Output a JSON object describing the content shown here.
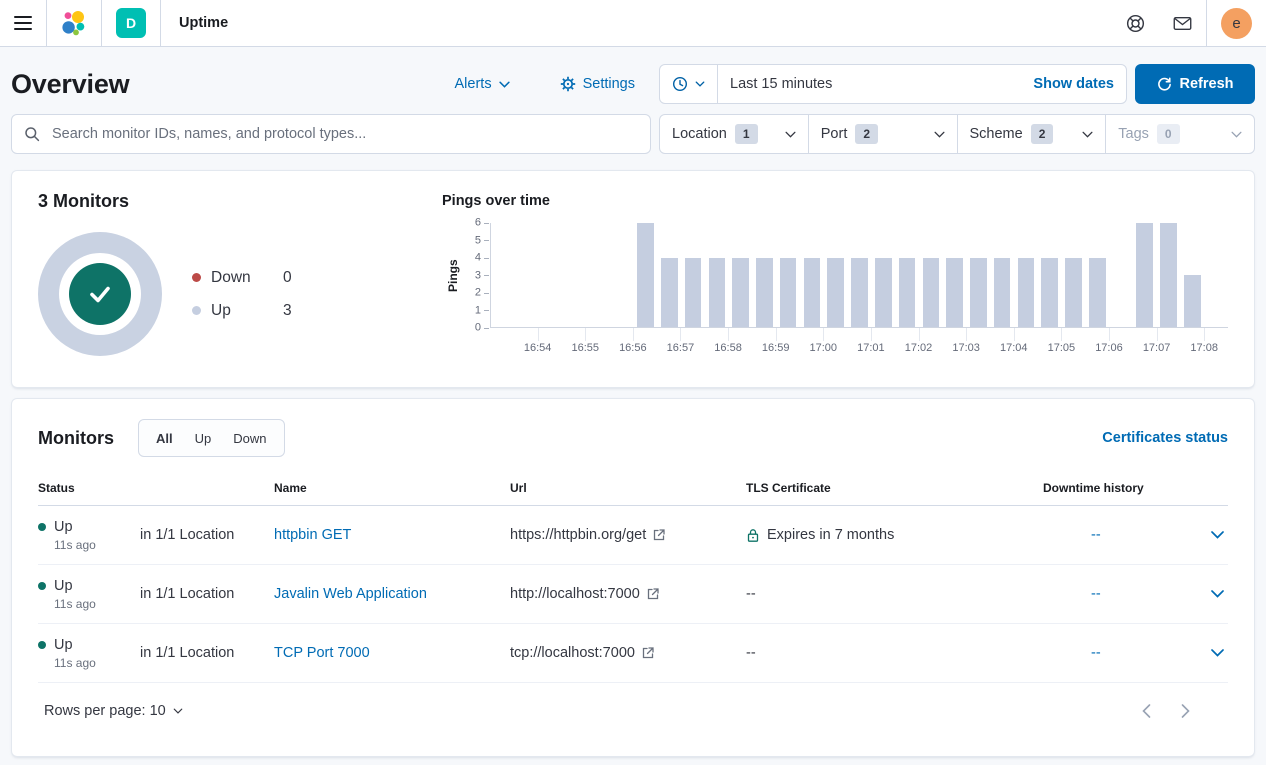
{
  "header": {
    "breadcrumb": "Uptime",
    "space_badge": "D",
    "avatar_initial": "e"
  },
  "page": {
    "title": "Overview",
    "alerts_label": "Alerts",
    "settings_label": "Settings",
    "time_range": "Last 15 minutes",
    "show_dates_label": "Show dates",
    "refresh_label": "Refresh"
  },
  "filters": {
    "search_placeholder": "Search monitor IDs, names, and protocol types...",
    "items": [
      {
        "label": "Location",
        "count": "1",
        "disabled": false
      },
      {
        "label": "Port",
        "count": "2",
        "disabled": false
      },
      {
        "label": "Scheme",
        "count": "2",
        "disabled": false
      },
      {
        "label": "Tags",
        "count": "0",
        "disabled": true
      }
    ]
  },
  "snapshot": {
    "title": "3 Monitors",
    "legend": [
      {
        "label": "Down",
        "value": "0",
        "color": "#BC4A47"
      },
      {
        "label": "Up",
        "value": "3",
        "color": "#C5CEE0"
      }
    ]
  },
  "chart_data": {
    "type": "bar",
    "title": "Pings over time",
    "ylabel": "Pings",
    "ylim": [
      0,
      6
    ],
    "yticks": [
      0,
      1,
      2,
      3,
      4,
      5,
      6
    ],
    "x_domain": [
      "16:53:00",
      "17:08:30"
    ],
    "xticks": [
      "16:54",
      "16:55",
      "16:56",
      "16:57",
      "16:58",
      "16:59",
      "17:00",
      "17:01",
      "17:02",
      "17:03",
      "17:04",
      "17:05",
      "17:06",
      "17:07",
      "17:08"
    ],
    "bucket_seconds": 30,
    "bar_color": "#C5CEE0",
    "grid": false,
    "points": [
      {
        "time": "16:56:00",
        "value": 6
      },
      {
        "time": "16:56:30",
        "value": 4
      },
      {
        "time": "16:57:00",
        "value": 4
      },
      {
        "time": "16:57:30",
        "value": 4
      },
      {
        "time": "16:58:00",
        "value": 4
      },
      {
        "time": "16:58:30",
        "value": 4
      },
      {
        "time": "16:59:00",
        "value": 4
      },
      {
        "time": "16:59:30",
        "value": 4
      },
      {
        "time": "17:00:00",
        "value": 4
      },
      {
        "time": "17:00:30",
        "value": 4
      },
      {
        "time": "17:01:00",
        "value": 4
      },
      {
        "time": "17:01:30",
        "value": 4
      },
      {
        "time": "17:02:00",
        "value": 4
      },
      {
        "time": "17:02:30",
        "value": 4
      },
      {
        "time": "17:03:00",
        "value": 4
      },
      {
        "time": "17:03:30",
        "value": 4
      },
      {
        "time": "17:04:00",
        "value": 4
      },
      {
        "time": "17:04:30",
        "value": 4
      },
      {
        "time": "17:05:00",
        "value": 4
      },
      {
        "time": "17:05:30",
        "value": 4
      },
      {
        "time": "17:06:30",
        "value": 6
      },
      {
        "time": "17:07:00",
        "value": 6
      },
      {
        "time": "17:07:30",
        "value": 3
      }
    ]
  },
  "monitors": {
    "title": "Monitors",
    "tabs": [
      "All",
      "Up",
      "Down"
    ],
    "selected_tab": "All",
    "certificates_link": "Certificates status",
    "columns": [
      "Status",
      "Name",
      "Url",
      "TLS Certificate",
      "Downtime history"
    ],
    "rows": [
      {
        "status": "Up",
        "ago": "11s ago",
        "location": "in 1/1 Location",
        "name": "httpbin GET",
        "url": "https://httpbin.org/get",
        "tls": "Expires in 7 months",
        "tls_has_lock": true,
        "downtime": "--"
      },
      {
        "status": "Up",
        "ago": "11s ago",
        "location": "in 1/1 Location",
        "name": "Javalin Web Application",
        "url": "http://localhost:7000",
        "tls": "--",
        "tls_has_lock": false,
        "downtime": "--"
      },
      {
        "status": "Up",
        "ago": "11s ago",
        "location": "in 1/1 Location",
        "name": "TCP Port 7000",
        "url": "tcp://localhost:7000",
        "tls": "--",
        "tls_has_lock": false,
        "downtime": "--"
      }
    ],
    "rows_per_page_label": "Rows per page: 10"
  },
  "colors": {
    "primary_blue": "#006BB4",
    "status_up_teal": "#0E7367",
    "status_down_red": "#BC4A47",
    "bar_fill": "#C5CEE0",
    "space_badge_teal": "#00BFB3",
    "avatar_orange": "#F4A061"
  },
  "icons": {
    "menu": "hamburger",
    "elastic_logo": "colored-circle-cluster",
    "help": "life-ring",
    "newsfeed": "envelope",
    "quick_select": "clock",
    "settings": "gear",
    "search": "magnifier",
    "refresh": "circular-arrow",
    "tls_lock": "padlock",
    "external_link": "box-arrow",
    "expand": "chevron-down",
    "pager": "chevron-left-right",
    "status": "check-in-circle"
  }
}
